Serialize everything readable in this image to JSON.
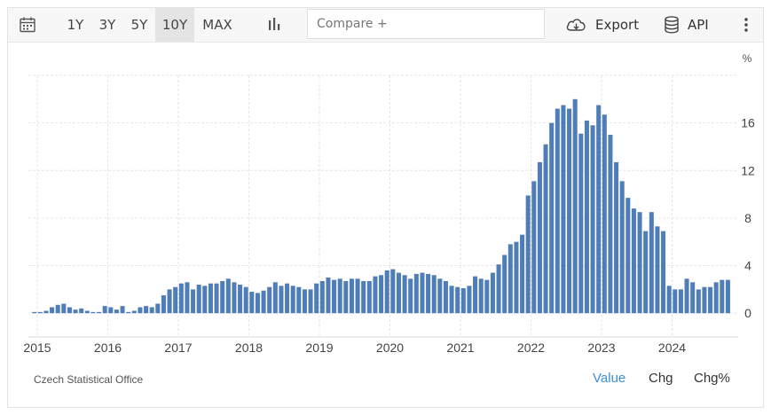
{
  "toolbar": {
    "ranges": [
      "1Y",
      "3Y",
      "5Y",
      "10Y",
      "MAX"
    ],
    "active_range": "10Y",
    "compare_placeholder": "Compare +",
    "export_label": "Export",
    "api_label": "API"
  },
  "source": "Czech Statistical Office",
  "footer_tabs": [
    "Value",
    "Chg",
    "Chg%"
  ],
  "active_tab": "Value",
  "colors": {
    "bar": "#4f7db7",
    "active_tab": "#3a8fd6",
    "grid": "#e6e6e6"
  },
  "chart_data": {
    "type": "bar",
    "ylabel": "%",
    "ylim": [
      -2,
      20
    ],
    "y_ticks": [
      0,
      4,
      8,
      12,
      16
    ],
    "x_ticks": [
      "2015",
      "2016",
      "2017",
      "2018",
      "2019",
      "2020",
      "2021",
      "2022",
      "2023",
      "2024"
    ],
    "start": "2015-01",
    "frequency": "monthly",
    "values": [
      0.1,
      0.1,
      0.2,
      0.5,
      0.7,
      0.8,
      0.5,
      0.3,
      0.4,
      0.2,
      0.1,
      0.1,
      0.6,
      0.5,
      0.3,
      0.6,
      0.1,
      0.2,
      0.5,
      0.6,
      0.5,
      0.8,
      1.5,
      2.0,
      2.2,
      2.5,
      2.6,
      2.0,
      2.4,
      2.3,
      2.5,
      2.5,
      2.7,
      2.9,
      2.6,
      2.4,
      2.2,
      1.8,
      1.7,
      1.9,
      2.2,
      2.6,
      2.3,
      2.5,
      2.3,
      2.2,
      2.0,
      2.0,
      2.5,
      2.7,
      3.0,
      2.8,
      2.9,
      2.7,
      2.9,
      2.9,
      2.7,
      2.7,
      3.1,
      3.2,
      3.6,
      3.7,
      3.4,
      3.2,
      2.9,
      3.3,
      3.4,
      3.3,
      3.2,
      2.9,
      2.7,
      2.3,
      2.2,
      2.1,
      2.3,
      3.1,
      2.9,
      2.8,
      3.4,
      4.1,
      4.9,
      5.8,
      6.0,
      6.6,
      9.9,
      11.1,
      12.7,
      14.2,
      16.0,
      17.2,
      17.5,
      17.2,
      18.0,
      15.1,
      16.2,
      15.8,
      17.5,
      16.7,
      15.0,
      12.7,
      11.1,
      9.7,
      8.8,
      8.5,
      6.9,
      8.5,
      7.3,
      6.9,
      2.3,
      2.0,
      2.0,
      2.9,
      2.6,
      2.0,
      2.2,
      2.2,
      2.6,
      2.8,
      2.8
    ]
  }
}
